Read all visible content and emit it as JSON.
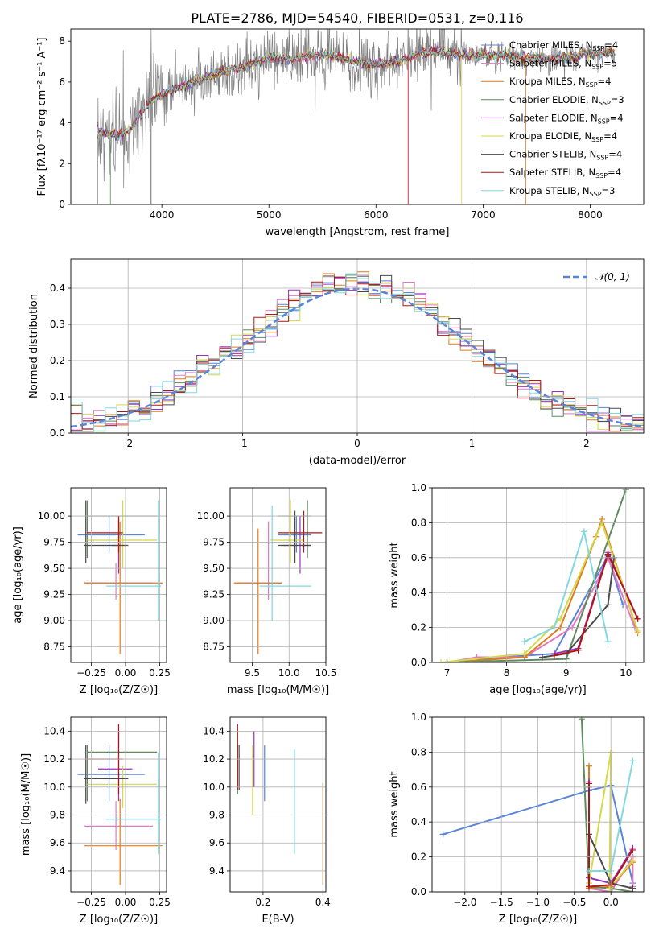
{
  "title": "PLATE=2786, MJD=54540, FIBERID=0531, z=0.116",
  "series": [
    {
      "name": "Chabrier MILES",
      "n": "4",
      "color": "#5a84d8"
    },
    {
      "name": "Salpeter MILES",
      "n": "5",
      "color": "#e377c2"
    },
    {
      "name": "Kroupa MILES",
      "n": "4",
      "color": "#e07b1a"
    },
    {
      "name": "Chabrier ELODIE",
      "n": "3",
      "color": "#5f8a5f"
    },
    {
      "name": "Salpeter ELODIE",
      "n": "4",
      "color": "#9b30b8"
    },
    {
      "name": "Kroupa ELODIE",
      "n": "4",
      "color": "#d6d84a"
    },
    {
      "name": "Chabrier STELIB",
      "n": "4",
      "color": "#4a4a4a"
    },
    {
      "name": "Salpeter STELIB",
      "n": "4",
      "color": "#b01515"
    },
    {
      "name": "Kroupa STELIB",
      "n": "3",
      "color": "#80d8e0"
    }
  ],
  "chart_data": [
    {
      "id": "spectrum",
      "type": "line",
      "xlabel": "wavelength [Angstrom, rest frame]",
      "ylabel": "Flux [fλ10⁻¹⁷ erg cm⁻² s⁻¹ A⁻¹]",
      "xlim": [
        3150,
        8500
      ],
      "ylim": [
        0,
        8.6
      ],
      "xticks": [
        4000,
        5000,
        6000,
        7000,
        8000
      ],
      "yticks": [
        0,
        2,
        4,
        6,
        8
      ],
      "data_color": "#808080",
      "continuum": {
        "x": [
          3400,
          3500,
          3600,
          3700,
          3800,
          3900,
          4000,
          4200,
          4500,
          4800,
          5000,
          5200,
          5400,
          5600,
          5800,
          6000,
          6200,
          6400,
          6600,
          6800,
          7000,
          7200,
          7400,
          7600,
          7800,
          8000,
          8200
        ],
        "y": [
          3.6,
          3.5,
          3.4,
          3.6,
          4.4,
          5.1,
          5.4,
          5.8,
          6.4,
          6.8,
          7.2,
          7.1,
          7.3,
          7.3,
          7.0,
          6.9,
          7.0,
          7.4,
          7.5,
          7.3,
          7.3,
          7.3,
          7.2,
          7.1,
          7.2,
          7.4,
          7.4
        ]
      }
    },
    {
      "id": "residuals",
      "type": "step",
      "xlabel": "(data-model)/error",
      "ylabel": "Normed distribution",
      "xlim": [
        -2.5,
        2.5
      ],
      "ylim": [
        0,
        0.48
      ],
      "xticks": [
        -2,
        -1,
        0,
        1,
        2
      ],
      "yticks": [
        0.0,
        0.1,
        0.2,
        0.3,
        0.4
      ],
      "legend": "𝒩(0, 1)",
      "gauss_color": "#5a84d8"
    },
    {
      "id": "age_vs_Z",
      "type": "errorbar",
      "xlabel": "Z [log₁₀(Z/Z☉)]",
      "ylabel": "age  [log₁₀(age/yr)]",
      "xlim": [
        -0.4,
        0.3
      ],
      "ylim": [
        8.6,
        10.27
      ],
      "xticks": [
        -0.25,
        0.0,
        0.25
      ],
      "xticklabels": [
        "−0.25",
        "0.00",
        "0.25"
      ],
      "yticks": [
        8.75,
        9.0,
        9.25,
        9.5,
        9.75,
        10.0
      ],
      "yticklabels": [
        "8.75",
        "9.00",
        "9.25",
        "9.50",
        "9.75",
        "10.00"
      ],
      "points": [
        {
          "s": 0,
          "x": -0.12,
          "xe": [
            -0.35,
            0.14
          ],
          "y": 9.82,
          "ye": [
            9.65,
            10.0
          ]
        },
        {
          "s": 1,
          "x": -0.07,
          "xe": [
            -0.3,
            0.2
          ],
          "y": 9.36,
          "ye": [
            9.2,
            9.55
          ]
        },
        {
          "s": 2,
          "x": -0.04,
          "xe": [
            -0.3,
            0.27
          ],
          "y": 9.36,
          "ye": [
            8.68,
            9.95
          ]
        },
        {
          "s": 3,
          "x": -0.28,
          "xe": [
            -0.28,
            0.23
          ],
          "y": 10.0,
          "ye": [
            9.6,
            10.15
          ]
        },
        {
          "s": 4,
          "x": -0.05,
          "xe": [
            -0.1,
            0.0
          ],
          "y": 9.72,
          "ye": [
            9.45,
            10.0
          ]
        },
        {
          "s": 5,
          "x": -0.02,
          "xe": [
            -0.28,
            0.23
          ],
          "y": 9.77,
          "ye": [
            9.5,
            10.15
          ]
        },
        {
          "s": 6,
          "x": -0.29,
          "xe": [
            -0.3,
            0.02
          ],
          "y": 9.72,
          "ye": [
            9.55,
            10.15
          ]
        },
        {
          "s": 7,
          "x": -0.05,
          "xe": [
            -0.28,
            -0.02
          ],
          "y": 9.84,
          "ye": [
            9.65,
            10.0
          ]
        },
        {
          "s": 8,
          "x": 0.24,
          "xe": [
            -0.14,
            0.26
          ],
          "y": 9.33,
          "ye": [
            9.0,
            10.15
          ]
        }
      ]
    },
    {
      "id": "age_vs_mass",
      "type": "errorbar",
      "xlabel": "mass [log₁₀(M/M☉)]",
      "ylabel": "",
      "xlim": [
        9.2,
        10.5
      ],
      "ylim": [
        8.6,
        10.27
      ],
      "xticks": [
        9.5,
        10.0,
        10.5
      ],
      "xticklabels": [
        "9.5",
        "10.0",
        "10.5"
      ],
      "yticks": [
        8.75,
        9.0,
        9.25,
        9.5,
        9.75,
        10.0
      ],
      "yticklabels": [
        "8.75",
        "9.00",
        "9.25",
        "9.50",
        "9.75",
        "10.00"
      ],
      "points": [
        {
          "s": 0,
          "x": 10.1,
          "xe": [
            9.85,
            10.3
          ],
          "y": 9.82,
          "ye": [
            9.65,
            10.0
          ]
        },
        {
          "s": 1,
          "x": 9.72,
          "xe": [
            9.3,
            9.9
          ],
          "y": 9.36,
          "ye": [
            9.2,
            9.95
          ]
        },
        {
          "s": 2,
          "x": 9.58,
          "xe": [
            9.25,
            9.9
          ],
          "y": 9.36,
          "ye": [
            8.68,
            9.88
          ]
        },
        {
          "s": 3,
          "x": 10.25,
          "xe": [
            9.85,
            10.3
          ],
          "y": 10.0,
          "ye": [
            9.6,
            10.15
          ]
        },
        {
          "s": 4,
          "x": 10.15,
          "xe": [
            9.9,
            10.3
          ],
          "y": 9.72,
          "ye": [
            9.45,
            10.0
          ]
        },
        {
          "s": 5,
          "x": 10.02,
          "xe": [
            9.75,
            10.2
          ],
          "y": 9.77,
          "ye": [
            9.55,
            10.15
          ]
        },
        {
          "s": 6,
          "x": 10.08,
          "xe": [
            9.85,
            10.3
          ],
          "y": 9.72,
          "ye": [
            9.55,
            10.05
          ]
        },
        {
          "s": 7,
          "x": 10.2,
          "xe": [
            9.85,
            10.45
          ],
          "y": 9.84,
          "ye": [
            9.65,
            10.05
          ]
        },
        {
          "s": 8,
          "x": 9.77,
          "xe": [
            9.6,
            10.3
          ],
          "y": 9.33,
          "ye": [
            9.0,
            10.1
          ]
        }
      ]
    },
    {
      "id": "mass_vs_Z",
      "type": "errorbar",
      "xlabel": "Z [log₁₀(Z/Z☉)]",
      "ylabel": "mass [log₁₀(M/M☉)]",
      "xlim": [
        -0.4,
        0.3
      ],
      "ylim": [
        9.25,
        10.5
      ],
      "xticks": [
        -0.25,
        0.0,
        0.25
      ],
      "xticklabels": [
        "−0.25",
        "0.00",
        "0.25"
      ],
      "yticks": [
        9.4,
        9.6,
        9.8,
        10.0,
        10.2,
        10.4
      ],
      "yticklabels": [
        "9.4",
        "9.6",
        "9.8",
        "10.0",
        "10.2",
        "10.4"
      ],
      "points": [
        {
          "s": 0,
          "x": -0.12,
          "xe": [
            -0.35,
            0.14
          ],
          "y": 10.09,
          "ye": [
            9.9,
            10.3
          ]
        },
        {
          "s": 1,
          "x": -0.07,
          "xe": [
            -0.3,
            0.2
          ],
          "y": 9.72,
          "ye": [
            9.55,
            9.9
          ]
        },
        {
          "s": 2,
          "x": -0.04,
          "xe": [
            -0.3,
            0.27
          ],
          "y": 9.58,
          "ye": [
            9.3,
            9.92
          ]
        },
        {
          "s": 3,
          "x": -0.28,
          "xe": [
            -0.28,
            0.23
          ],
          "y": 10.25,
          "ye": [
            9.9,
            10.3
          ]
        },
        {
          "s": 4,
          "x": -0.05,
          "xe": [
            -0.2,
            0.05
          ],
          "y": 10.13,
          "ye": [
            9.9,
            10.4
          ]
        },
        {
          "s": 5,
          "x": -0.02,
          "xe": [
            -0.28,
            0.23
          ],
          "y": 10.02,
          "ye": [
            9.85,
            10.15
          ]
        },
        {
          "s": 6,
          "x": -0.29,
          "xe": [
            -0.3,
            0.02
          ],
          "y": 10.06,
          "ye": [
            9.88,
            10.3
          ]
        },
        {
          "s": 7,
          "x": -0.05,
          "xe": [
            -0.28,
            -0.02
          ],
          "y": 10.2,
          "ye": [
            9.95,
            10.45
          ]
        },
        {
          "s": 8,
          "x": 0.24,
          "xe": [
            -0.14,
            0.26
          ],
          "y": 9.77,
          "ye": [
            9.52,
            10.25
          ]
        }
      ]
    },
    {
      "id": "mass_vs_EBV",
      "type": "errorbar",
      "xlabel": "E(B-V)",
      "ylabel": "",
      "xlim": [
        0.09,
        0.41
      ],
      "ylim": [
        9.25,
        10.5
      ],
      "xticks": [
        0.2,
        0.4
      ],
      "xticklabels": [
        "0.2",
        "0.4"
      ],
      "yticks": [
        9.4,
        9.6,
        9.8,
        10.0,
        10.2,
        10.4
      ],
      "yticklabels": [
        "9.4",
        "9.6",
        "9.8",
        "10.0",
        "10.2",
        "10.4"
      ],
      "points": [
        {
          "s": 0,
          "x": 0.205,
          "y": 10.09,
          "ye": [
            9.9,
            10.3
          ]
        },
        {
          "s": 1,
          "x": 0.115,
          "y": 10.1,
          "ye": [
            9.98,
            10.2
          ]
        },
        {
          "s": 2,
          "x": 0.4,
          "y": 9.66,
          "ye": [
            9.3,
            10.03
          ]
        },
        {
          "s": 3,
          "x": 0.115,
          "y": 10.15,
          "ye": [
            9.95,
            10.3
          ]
        },
        {
          "s": 4,
          "x": 0.17,
          "y": 10.2,
          "ye": [
            10.0,
            10.4
          ]
        },
        {
          "s": 5,
          "x": 0.165,
          "y": 10.05,
          "ye": [
            9.8,
            10.3
          ]
        },
        {
          "s": 6,
          "x": 0.12,
          "y": 10.1,
          "ye": [
            9.98,
            10.3
          ]
        },
        {
          "s": 7,
          "x": 0.115,
          "y": 10.2,
          "ye": [
            9.98,
            10.45
          ]
        },
        {
          "s": 8,
          "x": 0.305,
          "y": 9.9,
          "ye": [
            9.52,
            10.27
          ]
        }
      ]
    },
    {
      "id": "mw_vs_age",
      "type": "line",
      "xlabel": "age  [log₁₀(age/yr)]",
      "ylabel": "mass weight",
      "xlim": [
        6.75,
        10.3
      ],
      "ylim": [
        0,
        1.0
      ],
      "xticks": [
        7,
        8,
        9,
        10
      ],
      "xticklabels": [
        "7",
        "8",
        "9",
        "10"
      ],
      "yticks": [
        0.0,
        0.2,
        0.4,
        0.6,
        0.8,
        1.0
      ],
      "yticklabels": [
        "0.0",
        "0.2",
        "0.4",
        "0.6",
        "0.8",
        "1.0"
      ],
      "lines": [
        {
          "s": 0,
          "x": [
            7.5,
            8.8,
            9.7,
            9.95
          ],
          "y": [
            0.02,
            0.05,
            0.61,
            0.33
          ]
        },
        {
          "s": 1,
          "x": 7.0,
          "x_": 0,
          "xs": [
            7.0,
            7.5,
            8.3,
            9.1,
            9.5,
            9.7,
            10.15
          ],
          "ys": [
            0.0,
            0.03,
            0.03,
            0.2,
            0.45,
            0.6,
            0.2
          ]
        },
        {
          "s": 2,
          "xs": [
            7.0,
            8.3,
            8.9,
            9.5,
            9.6,
            10.2
          ],
          "ys": [
            0.0,
            0.03,
            0.2,
            0.72,
            0.82,
            0.17
          ]
        },
        {
          "s": 3,
          "xs": [
            7.0,
            9.0,
            10.0
          ],
          "ys": [
            0.0,
            0.02,
            0.99
          ]
        },
        {
          "s": 4,
          "xs": [
            8.8,
            9.2,
            9.7,
            10.2
          ],
          "ys": [
            0.05,
            0.08,
            0.63,
            0.25
          ]
        },
        {
          "s": 5,
          "xs": [
            6.9,
            8.3,
            8.9,
            9.6,
            10.2
          ],
          "ys": [
            0.0,
            0.05,
            0.25,
            0.8,
            0.18
          ]
        },
        {
          "s": 6,
          "xs": [
            8.6,
            9.0,
            9.7,
            9.8
          ],
          "ys": [
            0.03,
            0.05,
            0.33,
            0.6
          ]
        },
        {
          "s": 7,
          "xs": [
            8.8,
            9.2,
            9.7,
            10.2
          ],
          "ys": [
            0.04,
            0.07,
            0.62,
            0.25
          ]
        },
        {
          "s": 8,
          "xs": [
            8.3,
            8.8,
            9.3,
            9.7
          ],
          "ys": [
            0.12,
            0.2,
            0.75,
            0.12
          ]
        }
      ]
    },
    {
      "id": "mw_vs_Z",
      "type": "line",
      "xlabel": "Z [log₁₀(Z/Z☉)]",
      "ylabel": "mass weight",
      "xlim": [
        -2.45,
        0.45
      ],
      "ylim": [
        0,
        1.0
      ],
      "xticks": [
        -2.0,
        -1.5,
        -1.0,
        -0.5,
        0.0
      ],
      "xticklabels": [
        "−2.0",
        "−1.5",
        "−1.0",
        "−0.5",
        "0.0"
      ],
      "yticks": [
        0.0,
        0.2,
        0.4,
        0.6,
        0.8,
        1.0
      ],
      "yticklabels": [
        "0.0",
        "0.2",
        "0.4",
        "0.6",
        "0.8",
        "1.0"
      ],
      "lines": [
        {
          "s": 0,
          "xs": [
            -2.3,
            -0.3,
            0.0,
            0.3
          ],
          "ys": [
            0.33,
            0.58,
            0.61,
            0.05
          ]
        },
        {
          "s": 1,
          "xs": [
            -0.3,
            -0.3,
            0.0,
            0.3,
            0.3
          ],
          "ys": [
            0.2,
            0.02,
            0.0,
            0.2,
            0.03
          ]
        },
        {
          "s": 2,
          "xs": [
            -0.3,
            -0.3,
            0.0,
            0.3
          ],
          "ys": [
            0.72,
            0.02,
            0.03,
            0.17
          ]
        },
        {
          "s": 3,
          "xs": [
            -0.4,
            -0.3,
            0.0,
            0.3
          ],
          "ys": [
            0.99,
            0.03,
            0.02,
            0.0
          ]
        },
        {
          "s": 4,
          "xs": [
            -0.3,
            -0.3,
            0.0,
            0.3
          ],
          "ys": [
            0.63,
            0.08,
            0.05,
            0.25
          ]
        },
        {
          "s": 5,
          "xs": [
            -0.3,
            0.0,
            -0.02,
            0.3
          ],
          "ys": [
            0.05,
            0.8,
            0.02,
            0.18
          ]
        },
        {
          "s": 6,
          "xs": [
            -0.3,
            -0.3,
            0.0,
            0.3
          ],
          "ys": [
            0.6,
            0.33,
            0.05,
            0.02
          ]
        },
        {
          "s": 7,
          "xs": [
            -0.3,
            -0.3,
            0.0,
            0.3
          ],
          "ys": [
            0.62,
            0.03,
            0.04,
            0.24
          ]
        },
        {
          "s": 8,
          "xs": [
            -0.3,
            0.0,
            0.3
          ],
          "ys": [
            0.12,
            0.12,
            0.75
          ]
        }
      ]
    }
  ]
}
